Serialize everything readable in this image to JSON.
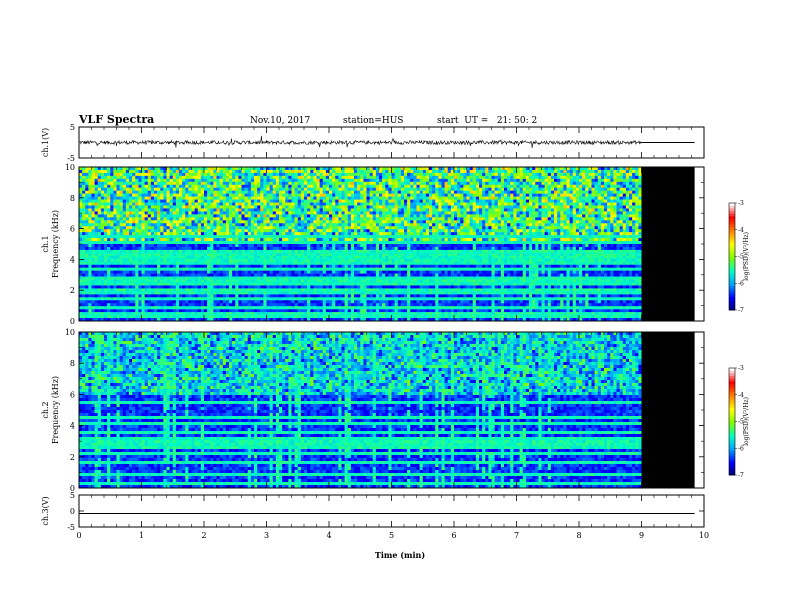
{
  "chart_data": {
    "type": "heatmap",
    "title": "VLF Spectra",
    "date": "Nov.10, 2017",
    "station": "station=HUS",
    "start_ut": "start  UT =   21: 50: 2",
    "xlabel": "Time (min)",
    "xlim": [
      0,
      10
    ],
    "x_ticks": [
      "0",
      "1",
      "2",
      "3",
      "4",
      "5",
      "6",
      "7",
      "8",
      "9",
      "10"
    ],
    "data_end_min": 9.0,
    "black_fill_end_min": 9.85,
    "panels": [
      {
        "id": "ch1-waveform",
        "type": "line",
        "ylabel": "ch.1(V)",
        "ylim": [
          -5,
          5
        ],
        "y_ticks": [
          "5",
          "-5"
        ],
        "trace_level": 0,
        "noise_amplitude": 0.6,
        "flat_after_min": 9.0
      },
      {
        "id": "ch1-spectrogram",
        "type": "heatmap",
        "ylabel": "ch.1",
        "ylabel2": "Frequency (kHz)",
        "ylim": [
          0,
          10
        ],
        "y_ticks": [
          "0",
          "2",
          "4",
          "6",
          "8",
          "10"
        ],
        "spectral_lines_khz": [
          0.4,
          0.8,
          1.4,
          1.9,
          2.5,
          2.85,
          3.35,
          3.7,
          4.05,
          4.4,
          5.1,
          5.5
        ],
        "noisy_band_khz": [
          5.2,
          10
        ],
        "noise_strength": 0.5,
        "colorbar": {
          "label": "log(PSD)(V²/Hz)",
          "range": [
            -7,
            -3
          ],
          "ticks": [
            "-3",
            "-4",
            "-5",
            "-6",
            "-7"
          ]
        }
      },
      {
        "id": "ch2-spectrogram",
        "type": "heatmap",
        "ylabel": "ch.2",
        "ylabel2": "Frequency (kHz)",
        "ylim": [
          0,
          10
        ],
        "y_ticks": [
          "0",
          "2",
          "4",
          "6",
          "8",
          "10"
        ],
        "spectral_lines_khz": [
          0.3,
          0.9,
          1.6,
          2.2,
          2.7,
          3.1,
          3.6,
          4.1,
          4.5,
          5.5
        ],
        "noisy_band_khz": [
          6,
          10
        ],
        "noise_strength": 0.3,
        "colorbar": {
          "label": "log(PSD)(V²/Hz)",
          "range": [
            -7,
            -3
          ],
          "ticks": [
            "-3",
            "-4",
            "-5",
            "-6",
            "-7"
          ]
        }
      },
      {
        "id": "ch3-waveform",
        "type": "line",
        "ylabel": "ch.3(V)",
        "ylim": [
          -5,
          5
        ],
        "y_ticks": [
          "5",
          "0",
          "-5"
        ],
        "trace_level": -0.8,
        "noise_amplitude": 0,
        "flat_after_min": 0
      }
    ],
    "colors": {
      "background": "#ffffff",
      "axis": "#000000",
      "no_data": "#000000",
      "colormap": [
        "#000066",
        "#0000ff",
        "#00a0ff",
        "#00ffc0",
        "#80ff00",
        "#ffff00",
        "#ff8000",
        "#ff0000",
        "#ffffff"
      ]
    }
  }
}
